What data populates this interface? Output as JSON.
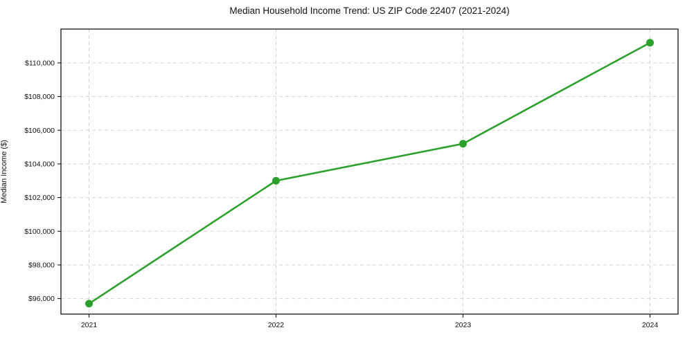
{
  "chart_data": {
    "type": "line",
    "title": "Median Household Income Trend: US ZIP Code 22407 (2021-2024)",
    "xlabel": "",
    "ylabel": "Median Income ($)",
    "x": [
      2021,
      2022,
      2023,
      2024
    ],
    "series": [
      {
        "name": "Median Household Income",
        "values": [
          95700,
          103000,
          105200,
          111200
        ]
      }
    ],
    "xticks": [
      2021,
      2022,
      2023,
      2024
    ],
    "xtick_labels": [
      "2021",
      "2022",
      "2023",
      "2024"
    ],
    "yticks": [
      96000,
      98000,
      100000,
      102000,
      104000,
      106000,
      108000,
      110000
    ],
    "ytick_labels": [
      "$96,000",
      "$98,000",
      "$100,000",
      "$102,000",
      "$104,000",
      "$106,000",
      "$108,000",
      "$110,000"
    ],
    "xlim": [
      2020.85,
      2024.15
    ],
    "ylim": [
      95080,
      112010
    ],
    "grid": true,
    "grid_style": "dashed",
    "legend_position": "none",
    "marker": "circle",
    "colors": {
      "line": "#2ca02c",
      "marker": "#2ca02c",
      "grid": "#d3d3d3",
      "axis": "#000000",
      "text": "#111111",
      "background": "#ffffff"
    }
  }
}
